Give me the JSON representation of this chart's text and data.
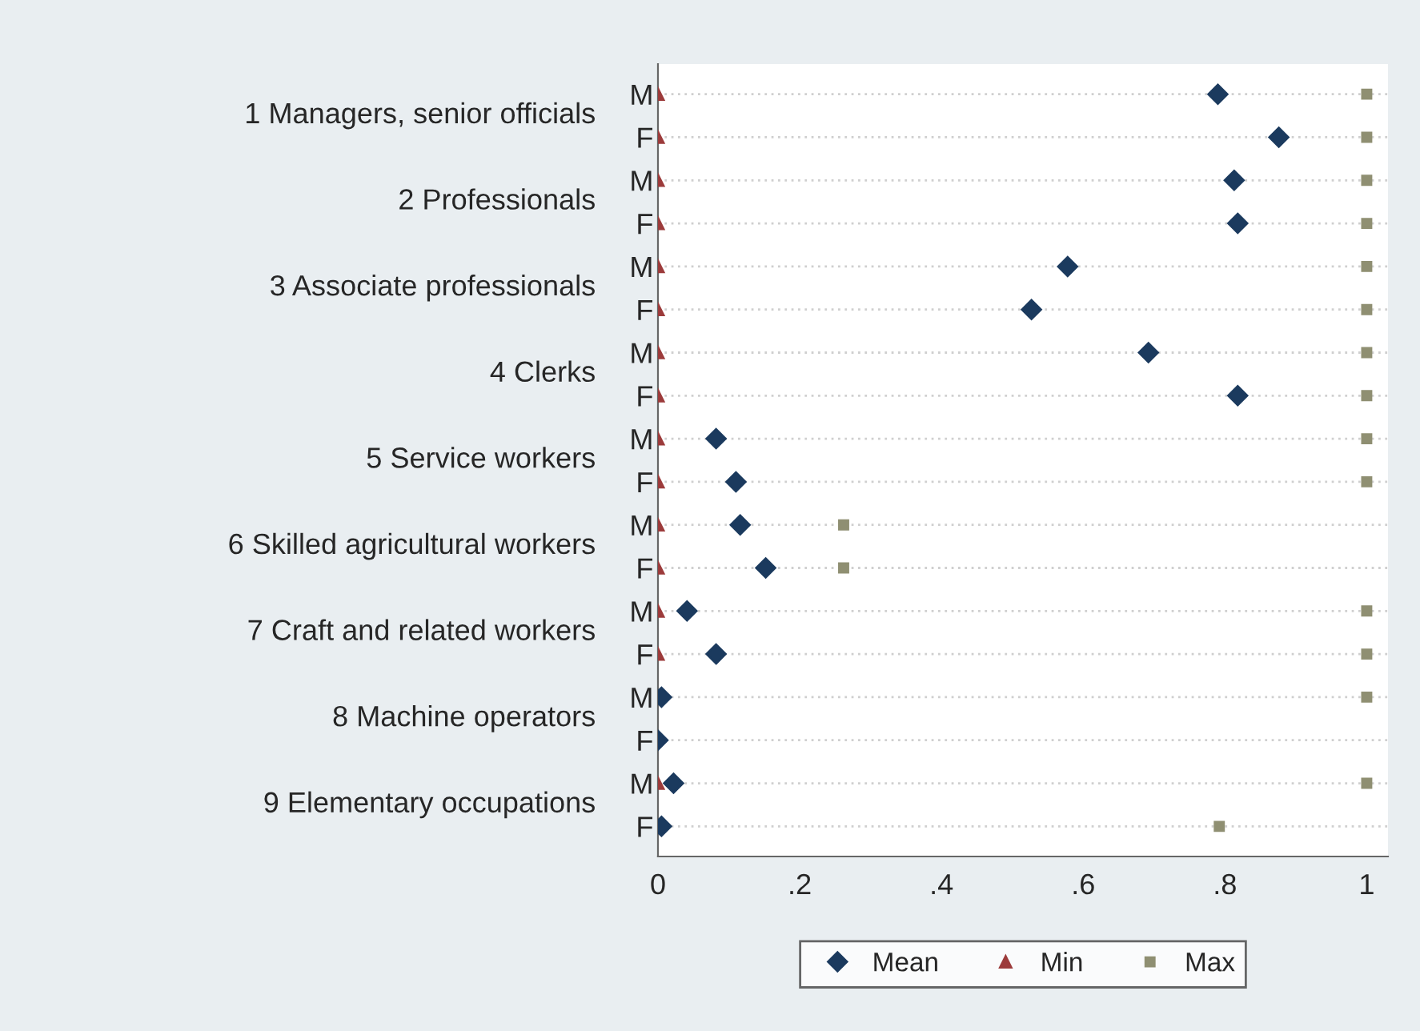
{
  "chart_data": {
    "type": "scatter",
    "orientation": "horizontal",
    "categories": [
      "M",
      "F",
      "M",
      "F",
      "M",
      "F",
      "M",
      "F",
      "M",
      "F",
      "M",
      "F",
      "M",
      "F",
      "M",
      "F",
      "M",
      "F"
    ],
    "annotations": [
      "1 Managers, senior officials",
      "2 Professionals",
      "3 Associate professionals",
      "4 Clerks",
      "5 Service workers",
      "6 Skilled agricultural workers",
      "7 Craft and related workers",
      "8 Machine operators",
      "9 Elementary occupations"
    ],
    "series": [
      {
        "name": "Mean",
        "color": "#1b3a5e",
        "marker": "diamond",
        "values": [
          0.79,
          0.876,
          0.813,
          0.818,
          0.578,
          0.527,
          0.692,
          0.818,
          0.082,
          0.11,
          0.116,
          0.152,
          0.041,
          0.082,
          0.005,
          0.0,
          0.022,
          0.005
        ]
      },
      {
        "name": "Min",
        "color": "#9c3b3b",
        "marker": "triangle",
        "values": [
          0,
          0,
          0,
          0,
          0,
          0,
          0,
          0,
          0,
          0,
          0,
          0,
          0,
          0,
          null,
          null,
          0,
          null
        ]
      },
      {
        "name": "Max",
        "color": "#8f8f72",
        "marker": "square",
        "values": [
          1,
          1,
          1,
          1,
          1,
          1,
          1,
          1,
          1,
          1,
          0.262,
          0.262,
          1,
          1,
          1,
          null,
          1,
          0.792
        ]
      }
    ],
    "xlim": [
      0,
      1.03
    ],
    "xticks": [
      0,
      {
        "value": 0.2,
        "label": ".2"
      },
      {
        "value": 0.4,
        "label": ".4"
      },
      {
        "value": 0.6,
        "label": ".6"
      },
      {
        "value": 0.8,
        "label": ".8"
      },
      1
    ],
    "grid": "y",
    "legend": "bottom"
  }
}
